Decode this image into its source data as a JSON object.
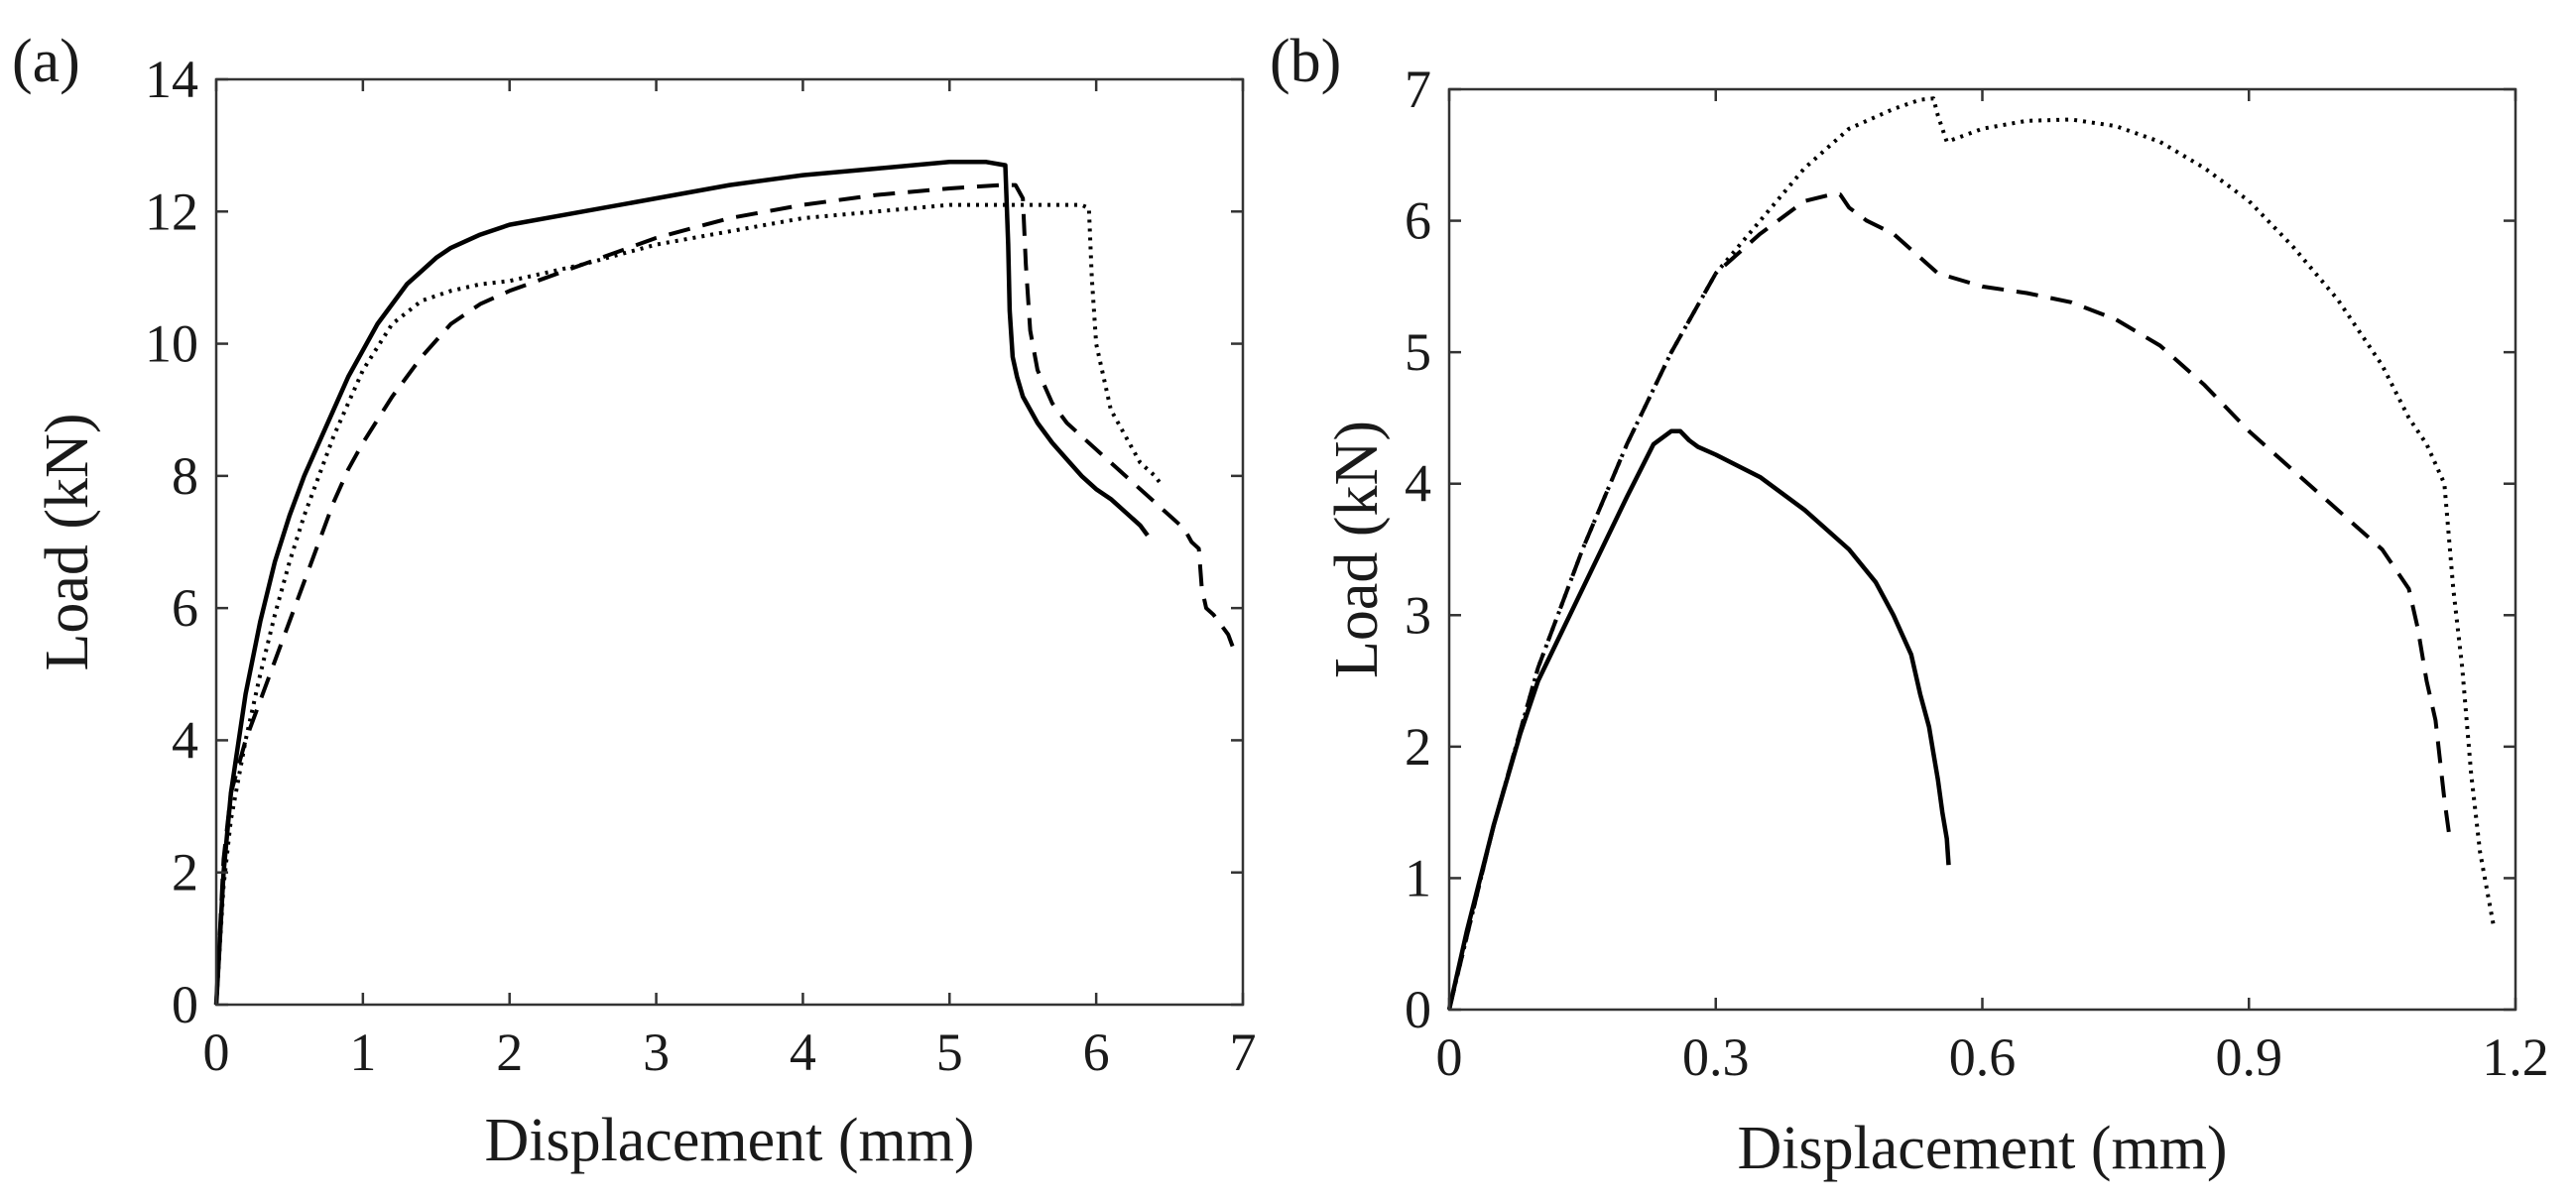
{
  "chart_data": [
    {
      "panel_label": "(a)",
      "type": "line",
      "xlabel": "Displacement (mm)",
      "ylabel": "Load (kN)",
      "xlim": [
        0,
        7
      ],
      "ylim": [
        0,
        14
      ],
      "xticks": [
        0,
        1,
        2,
        3,
        4,
        5,
        6,
        7
      ],
      "yticks": [
        0,
        2,
        4,
        6,
        8,
        10,
        12,
        14
      ],
      "xtick_labels": [
        "0",
        "1",
        "2",
        "3",
        "4",
        "5",
        "6",
        "7"
      ],
      "ytick_labels": [
        "0",
        "2",
        "4",
        "6",
        "8",
        "10",
        "12",
        "14"
      ],
      "grid": false,
      "series": [
        {
          "name": "solid",
          "style": "solid",
          "x": [
            0,
            0.05,
            0.1,
            0.2,
            0.3,
            0.4,
            0.5,
            0.6,
            0.7,
            0.8,
            0.9,
            1.0,
            1.1,
            1.2,
            1.3,
            1.4,
            1.5,
            1.6,
            1.8,
            2.0,
            2.5,
            3.0,
            3.5,
            4.0,
            4.5,
            5.0,
            5.25,
            5.38,
            5.4,
            5.41,
            5.43,
            5.46,
            5.5,
            5.6,
            5.7,
            5.8,
            5.9,
            6.0,
            6.1,
            6.2,
            6.3,
            6.35
          ],
          "y": [
            0,
            2.0,
            3.2,
            4.7,
            5.8,
            6.7,
            7.4,
            8.0,
            8.5,
            9.0,
            9.5,
            9.9,
            10.3,
            10.6,
            10.9,
            11.1,
            11.3,
            11.45,
            11.65,
            11.8,
            12.0,
            12.2,
            12.4,
            12.55,
            12.65,
            12.75,
            12.75,
            12.7,
            11.5,
            10.5,
            9.8,
            9.5,
            9.2,
            8.8,
            8.5,
            8.25,
            8.0,
            7.8,
            7.65,
            7.45,
            7.25,
            7.1
          ]
        },
        {
          "name": "dashed",
          "style": "dashed",
          "x": [
            0,
            0.05,
            0.1,
            0.2,
            0.3,
            0.4,
            0.5,
            0.6,
            0.7,
            0.8,
            0.9,
            1.0,
            1.2,
            1.4,
            1.6,
            1.8,
            2.0,
            2.5,
            3.0,
            3.5,
            4.0,
            4.5,
            5.0,
            5.35,
            5.45,
            5.5,
            5.52,
            5.55,
            5.6,
            5.7,
            5.8,
            6.0,
            6.2,
            6.4,
            6.6,
            6.65,
            6.7,
            6.72,
            6.75,
            6.8,
            6.9,
            6.95
          ],
          "y": [
            0,
            2.2,
            3.2,
            4.0,
            4.6,
            5.2,
            5.8,
            6.4,
            7.0,
            7.6,
            8.1,
            8.5,
            9.2,
            9.8,
            10.3,
            10.6,
            10.8,
            11.2,
            11.6,
            11.9,
            12.1,
            12.25,
            12.35,
            12.4,
            12.4,
            12.2,
            11.2,
            10.2,
            9.6,
            9.1,
            8.8,
            8.4,
            8.0,
            7.6,
            7.2,
            7.0,
            6.9,
            6.3,
            6.0,
            5.9,
            5.6,
            5.3
          ]
        },
        {
          "name": "dotted",
          "style": "dotted",
          "x": [
            0,
            0.05,
            0.1,
            0.2,
            0.3,
            0.4,
            0.5,
            0.6,
            0.7,
            0.8,
            0.9,
            1.0,
            1.2,
            1.4,
            1.6,
            1.8,
            2.0,
            2.5,
            3.0,
            3.5,
            4.0,
            4.5,
            5.0,
            5.5,
            5.9,
            5.95,
            5.97,
            6.0,
            6.05,
            6.1,
            6.2,
            6.3,
            6.4,
            6.45
          ],
          "y": [
            0,
            1.8,
            2.8,
            4.0,
            5.0,
            5.9,
            6.7,
            7.4,
            8.0,
            8.6,
            9.1,
            9.6,
            10.3,
            10.65,
            10.8,
            10.9,
            10.95,
            11.2,
            11.5,
            11.7,
            11.9,
            12.0,
            12.1,
            12.1,
            12.1,
            12.05,
            11.0,
            10.0,
            9.5,
            9.0,
            8.6,
            8.2,
            8.0,
            7.85
          ]
        }
      ]
    },
    {
      "panel_label": "(b)",
      "type": "line",
      "xlabel": "Displacement (mm)",
      "ylabel": "Load (kN)",
      "xlim": [
        0,
        1.2
      ],
      "ylim": [
        0,
        7
      ],
      "xticks": [
        0,
        0.3,
        0.6,
        0.9,
        1.2
      ],
      "yticks": [
        0,
        1,
        2,
        3,
        4,
        5,
        6,
        7
      ],
      "xtick_labels": [
        "0",
        "0.3",
        "0.6",
        "0.9",
        "1.2"
      ],
      "ytick_labels": [
        "0",
        "1",
        "2",
        "3",
        "4",
        "5",
        "6",
        "7"
      ],
      "grid": false,
      "series": [
        {
          "name": "solid",
          "style": "solid",
          "x": [
            0,
            0.02,
            0.05,
            0.08,
            0.1,
            0.15,
            0.2,
            0.23,
            0.25,
            0.26,
            0.27,
            0.28,
            0.3,
            0.35,
            0.4,
            0.45,
            0.48,
            0.5,
            0.52,
            0.53,
            0.54,
            0.545,
            0.55,
            0.555,
            0.56,
            0.562
          ],
          "y": [
            0,
            0.6,
            1.4,
            2.1,
            2.5,
            3.2,
            3.9,
            4.3,
            4.4,
            4.4,
            4.33,
            4.28,
            4.22,
            4.05,
            3.8,
            3.5,
            3.25,
            3.0,
            2.7,
            2.4,
            2.15,
            1.95,
            1.75,
            1.5,
            1.3,
            1.1
          ]
        },
        {
          "name": "dashed",
          "style": "dashed",
          "x": [
            0,
            0.05,
            0.1,
            0.15,
            0.2,
            0.25,
            0.3,
            0.35,
            0.4,
            0.43,
            0.44,
            0.45,
            0.47,
            0.5,
            0.55,
            0.6,
            0.65,
            0.7,
            0.75,
            0.8,
            0.85,
            0.9,
            0.95,
            1.0,
            1.05,
            1.08,
            1.09,
            1.1,
            1.11,
            1.12,
            1.125
          ],
          "y": [
            0,
            1.4,
            2.6,
            3.5,
            4.3,
            5.0,
            5.6,
            5.9,
            6.15,
            6.2,
            6.2,
            6.1,
            6.0,
            5.9,
            5.6,
            5.5,
            5.45,
            5.38,
            5.25,
            5.05,
            4.75,
            4.4,
            4.1,
            3.8,
            3.5,
            3.2,
            2.9,
            2.5,
            2.2,
            1.6,
            1.35
          ]
        },
        {
          "name": "dotted",
          "style": "dotted",
          "x": [
            0,
            0.05,
            0.1,
            0.15,
            0.2,
            0.25,
            0.3,
            0.35,
            0.4,
            0.45,
            0.5,
            0.53,
            0.545,
            0.55,
            0.56,
            0.6,
            0.65,
            0.7,
            0.75,
            0.8,
            0.85,
            0.9,
            0.95,
            1.0,
            1.05,
            1.08,
            1.1,
            1.12,
            1.13,
            1.14,
            1.15,
            1.16,
            1.175
          ],
          "y": [
            0,
            1.4,
            2.6,
            3.5,
            4.3,
            5.0,
            5.6,
            6.0,
            6.4,
            6.7,
            6.85,
            6.92,
            6.93,
            6.8,
            6.6,
            6.7,
            6.76,
            6.77,
            6.72,
            6.6,
            6.4,
            6.15,
            5.8,
            5.4,
            4.9,
            4.5,
            4.3,
            4.0,
            3.2,
            2.6,
            1.8,
            1.2,
            0.65
          ]
        }
      ]
    }
  ]
}
